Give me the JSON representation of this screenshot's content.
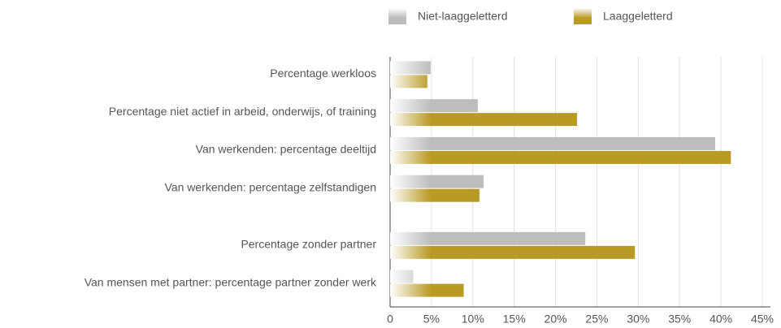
{
  "chart_data": {
    "type": "hbar",
    "categories": [
      "Percentage werkloos",
      "Percentage niet actief in arbeid, onderwijs, of training",
      "Van werkenden: percentage deeltijd",
      "Van werkenden: percentage zelfstandigen",
      null,
      "Percentage zonder partner",
      "Van mensen met partner: percentage partner zonder werk"
    ],
    "series": [
      {
        "name": "Niet-laaggeletterd",
        "color": "#bdbdbd",
        "values": [
          4.9,
          10.6,
          39.3,
          11.3,
          null,
          23.6,
          2.8
        ]
      },
      {
        "name": "Laaggeletterd",
        "color": "#b99a24",
        "values": [
          4.5,
          22.6,
          41.2,
          10.8,
          null,
          29.6,
          8.9
        ]
      }
    ],
    "xlim": [
      0,
      45
    ],
    "xticks": [
      0,
      {
        "value": 5,
        "label": "5%"
      },
      {
        "value": 10,
        "label": "10%"
      },
      {
        "value": 15,
        "label": "15%"
      },
      {
        "value": 20,
        "label": "20%"
      },
      {
        "value": 25,
        "label": "25%"
      },
      {
        "value": 30,
        "label": "30%"
      },
      {
        "value": 35,
        "label": "35%"
      },
      {
        "value": 40,
        "label": "40%"
      },
      {
        "value": 45,
        "label": "45%"
      }
    ],
    "grid": true,
    "legend": "top"
  }
}
